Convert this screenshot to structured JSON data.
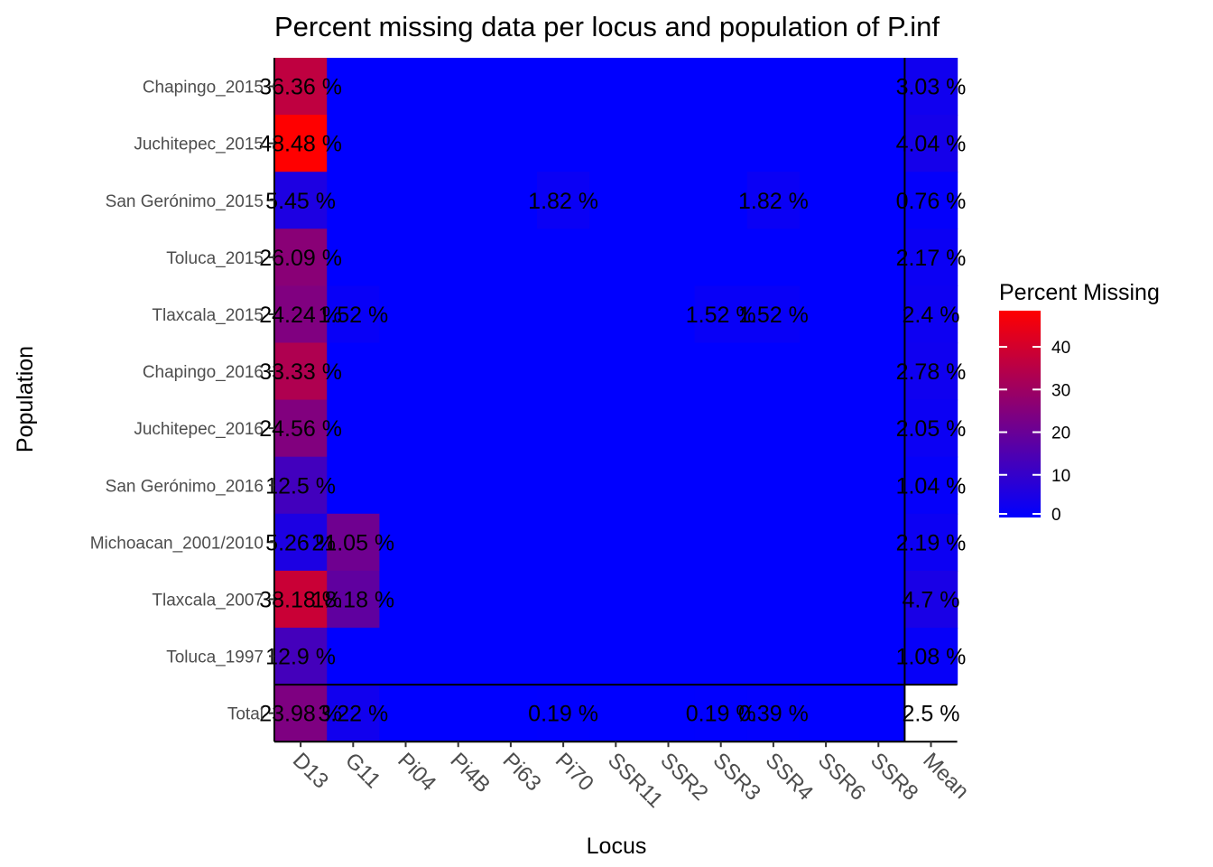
{
  "chart_data": {
    "type": "heatmap",
    "title": "Percent missing data per locus and population of P.inf",
    "xlabel": "Locus",
    "ylabel": "Population",
    "x_categories": [
      "D13",
      "G11",
      "Pi04",
      "Pi4B",
      "Pi63",
      "Pi70",
      "SSR11",
      "SSR2",
      "SSR3",
      "SSR4",
      "SSR6",
      "SSR8",
      "Mean"
    ],
    "y_categories": [
      "Chapingo_2015",
      "Juchitepec_2015",
      "San Gerónimo_2015",
      "Toluca_2015",
      "Tlaxcala_2015",
      "Chapingo_2016",
      "Juchitepec_2016",
      "San Gerónimo_2016",
      "Michoacan_2001/2010",
      "Tlaxcala_2007",
      "Toluca_1997",
      "Total"
    ],
    "values": [
      [
        36.36,
        0,
        0,
        0,
        0,
        0,
        0,
        0,
        0,
        0,
        0,
        0,
        3.03
      ],
      [
        48.48,
        0,
        0,
        0,
        0,
        0,
        0,
        0,
        0,
        0,
        0,
        0,
        4.04
      ],
      [
        5.45,
        0,
        0,
        0,
        0,
        1.82,
        0,
        0,
        0,
        1.82,
        0,
        0,
        0.76
      ],
      [
        26.09,
        0,
        0,
        0,
        0,
        0,
        0,
        0,
        0,
        0,
        0,
        0,
        2.17
      ],
      [
        24.24,
        1.52,
        0,
        0,
        0,
        0,
        0,
        0,
        1.52,
        1.52,
        0,
        0,
        2.4
      ],
      [
        33.33,
        0,
        0,
        0,
        0,
        0,
        0,
        0,
        0,
        0,
        0,
        0,
        2.78
      ],
      [
        24.56,
        0,
        0,
        0,
        0,
        0,
        0,
        0,
        0,
        0,
        0,
        0,
        2.05
      ],
      [
        12.5,
        0,
        0,
        0,
        0,
        0,
        0,
        0,
        0,
        0,
        0,
        0,
        1.04
      ],
      [
        5.26,
        21.05,
        0,
        0,
        0,
        0,
        0,
        0,
        0,
        0,
        0,
        0,
        2.19
      ],
      [
        38.18,
        18.18,
        0,
        0,
        0,
        0,
        0,
        0,
        0,
        0,
        0,
        0,
        4.7
      ],
      [
        12.9,
        0,
        0,
        0,
        0,
        0,
        0,
        0,
        0,
        0,
        0,
        0,
        1.08
      ],
      [
        23.98,
        3.22,
        0,
        0,
        0,
        0.19,
        0,
        0,
        0.19,
        0.39,
        0,
        0,
        2.5
      ]
    ],
    "cell_labels": [
      [
        "36.36 %",
        "",
        "",
        "",
        "",
        "",
        "",
        "",
        "",
        "",
        "",
        "",
        "3.03 %"
      ],
      [
        "48.48 %",
        "",
        "",
        "",
        "",
        "",
        "",
        "",
        "",
        "",
        "",
        "",
        "4.04 %"
      ],
      [
        "5.45 %",
        "",
        "",
        "",
        "",
        "1.82 %",
        "",
        "",
        "",
        "1.82 %",
        "",
        "",
        "0.76 %"
      ],
      [
        "26.09 %",
        "",
        "",
        "",
        "",
        "",
        "",
        "",
        "",
        "",
        "",
        "",
        "2.17 %"
      ],
      [
        "24.24 %",
        "1.52 %",
        "",
        "",
        "",
        "",
        "",
        "",
        "1.52 %",
        "1.52 %",
        "",
        "",
        "2.4 %"
      ],
      [
        "33.33 %",
        "",
        "",
        "",
        "",
        "",
        "",
        "",
        "",
        "",
        "",
        "",
        "2.78 %"
      ],
      [
        "24.56 %",
        "",
        "",
        "",
        "",
        "",
        "",
        "",
        "",
        "",
        "",
        "",
        "2.05 %"
      ],
      [
        "12.5 %",
        "",
        "",
        "",
        "",
        "",
        "",
        "",
        "",
        "",
        "",
        "",
        "1.04 %"
      ],
      [
        "5.26 %",
        "21.05 %",
        "",
        "",
        "",
        "",
        "",
        "",
        "",
        "",
        "",
        "",
        "2.19 %"
      ],
      [
        "38.18 %",
        "18.18 %",
        "",
        "",
        "",
        "",
        "",
        "",
        "",
        "",
        "",
        "",
        "4.7 %"
      ],
      [
        "12.9 %",
        "",
        "",
        "",
        "",
        "",
        "",
        "",
        "",
        "",
        "",
        "",
        "1.08 %"
      ],
      [
        "23.98 %",
        "3.22 %",
        "",
        "",
        "",
        "0.19 %",
        "",
        "",
        "0.19 %",
        "0.39 %",
        "",
        "",
        "2.5 %"
      ]
    ],
    "legend": {
      "title": "Percent Missing",
      "ticks": [
        0,
        10,
        20,
        30,
        40
      ],
      "range": [
        0,
        48.48
      ],
      "placement": "right"
    },
    "colors": {
      "low": "#0000ff",
      "high": "#ff0000",
      "total_mean_cell": "#ffffff"
    },
    "grid": false
  }
}
